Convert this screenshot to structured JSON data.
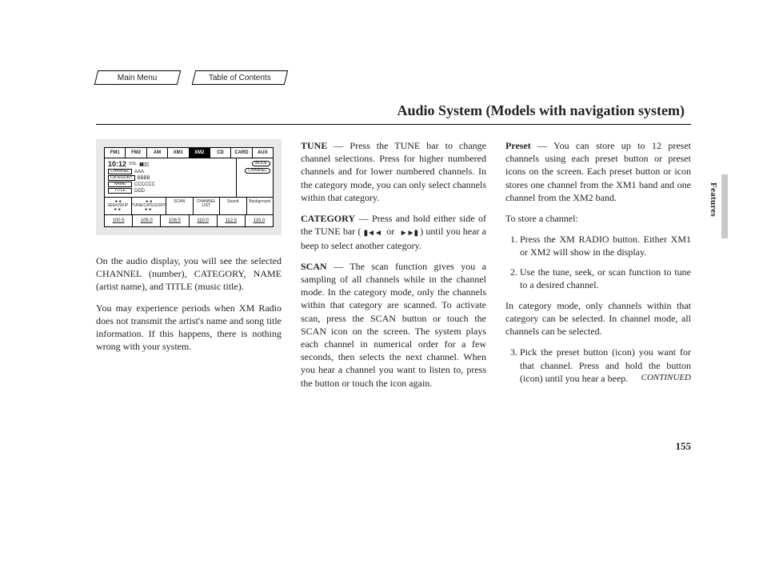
{
  "nav": {
    "main_menu": "Main Menu",
    "toc": "Table of Contents"
  },
  "title": "Audio System (Models with navigation system)",
  "side_tab": "Features",
  "page_number": "155",
  "continued": "CONTINUED",
  "display": {
    "bands": [
      "FM1",
      "FM2",
      "AM",
      "XM1",
      "XM2",
      "CD",
      "CARD",
      "AUX"
    ],
    "active_band_index": 4,
    "time": "10:12",
    "vol_label": "VOL",
    "vol_bars": "▮▮▯▯▯",
    "mode_label": "MODE",
    "channel_btn": "CHANNEL",
    "rows": {
      "channel_tag": "CHANNEL",
      "channel_val": "AAA",
      "category_tag": "CATEGORY",
      "category_val": "BBBB",
      "name_tag": "NAME",
      "name_val": "CCCCCC",
      "title_tag": "TITLE",
      "title_val": "DDD"
    },
    "controls": {
      "seek_prev": "◄◄ SEEK/SKIP ►►",
      "tune_prev": "◄◄ TUNE/CATEGORY ►►",
      "scan": "SCAN",
      "channel_list": "CHANNEL LIST",
      "sound": "Sound",
      "background": "Background"
    },
    "presets": [
      "100.5",
      "105.0",
      "108.5",
      "110.0",
      "112.5",
      "115.0"
    ]
  },
  "col1": {
    "p1": "On the audio display, you will see the selected CHANNEL (number), CATEGORY, NAME (artist name), and TITLE (music title).",
    "p2": "You may experience periods when XM Radio does not transmit the artist's name and song title information. If this happens, there is nothing wrong with your system."
  },
  "col2": {
    "tune_label": "TUNE",
    "tune_text": " — Press the TUNE bar to change channel selections. Press        for higher numbered channels and        for lower numbered channels. In the category mode, you can only select channels within that category.",
    "category_label": "CATEGORY",
    "category_text": " — Press and hold either side of the TUNE bar (   ▮◄◄   or   ►►▮   ) until you hear a beep to select another category.",
    "scan_label": "SCAN",
    "scan_text": " — The scan function gives you a sampling of all channels while in the channel mode. In the category mode, only the channels within that category are scanned. To activate scan, press the SCAN button or touch the SCAN icon on the screen. The system plays each channel in numerical order for a few seconds, then selects the next channel. When you hear a channel you want to listen to, press the button or touch the icon again."
  },
  "col3": {
    "preset_label": "Preset",
    "preset_text": " — You can store up to 12 preset channels using each preset button or preset icons on the screen. Each preset button or icon stores one channel from the XM1 band and one channel from the XM2 band.",
    "store_intro": "To store a channel:",
    "step1": "Press the XM RADIO button. Either XM1 or XM2 will show in the display.",
    "step2": "Use the tune, seek, or scan function to tune to a desired channel.",
    "note": "In category mode, only channels within that category can be selected. In channel mode, all channels can be selected.",
    "step3": "Pick the preset button (icon) you want for that channel. Press and hold the button (icon) until you hear a beep."
  },
  "icons": {
    "seek_prev": "▮◄◄",
    "seek_next": "►►▮"
  }
}
